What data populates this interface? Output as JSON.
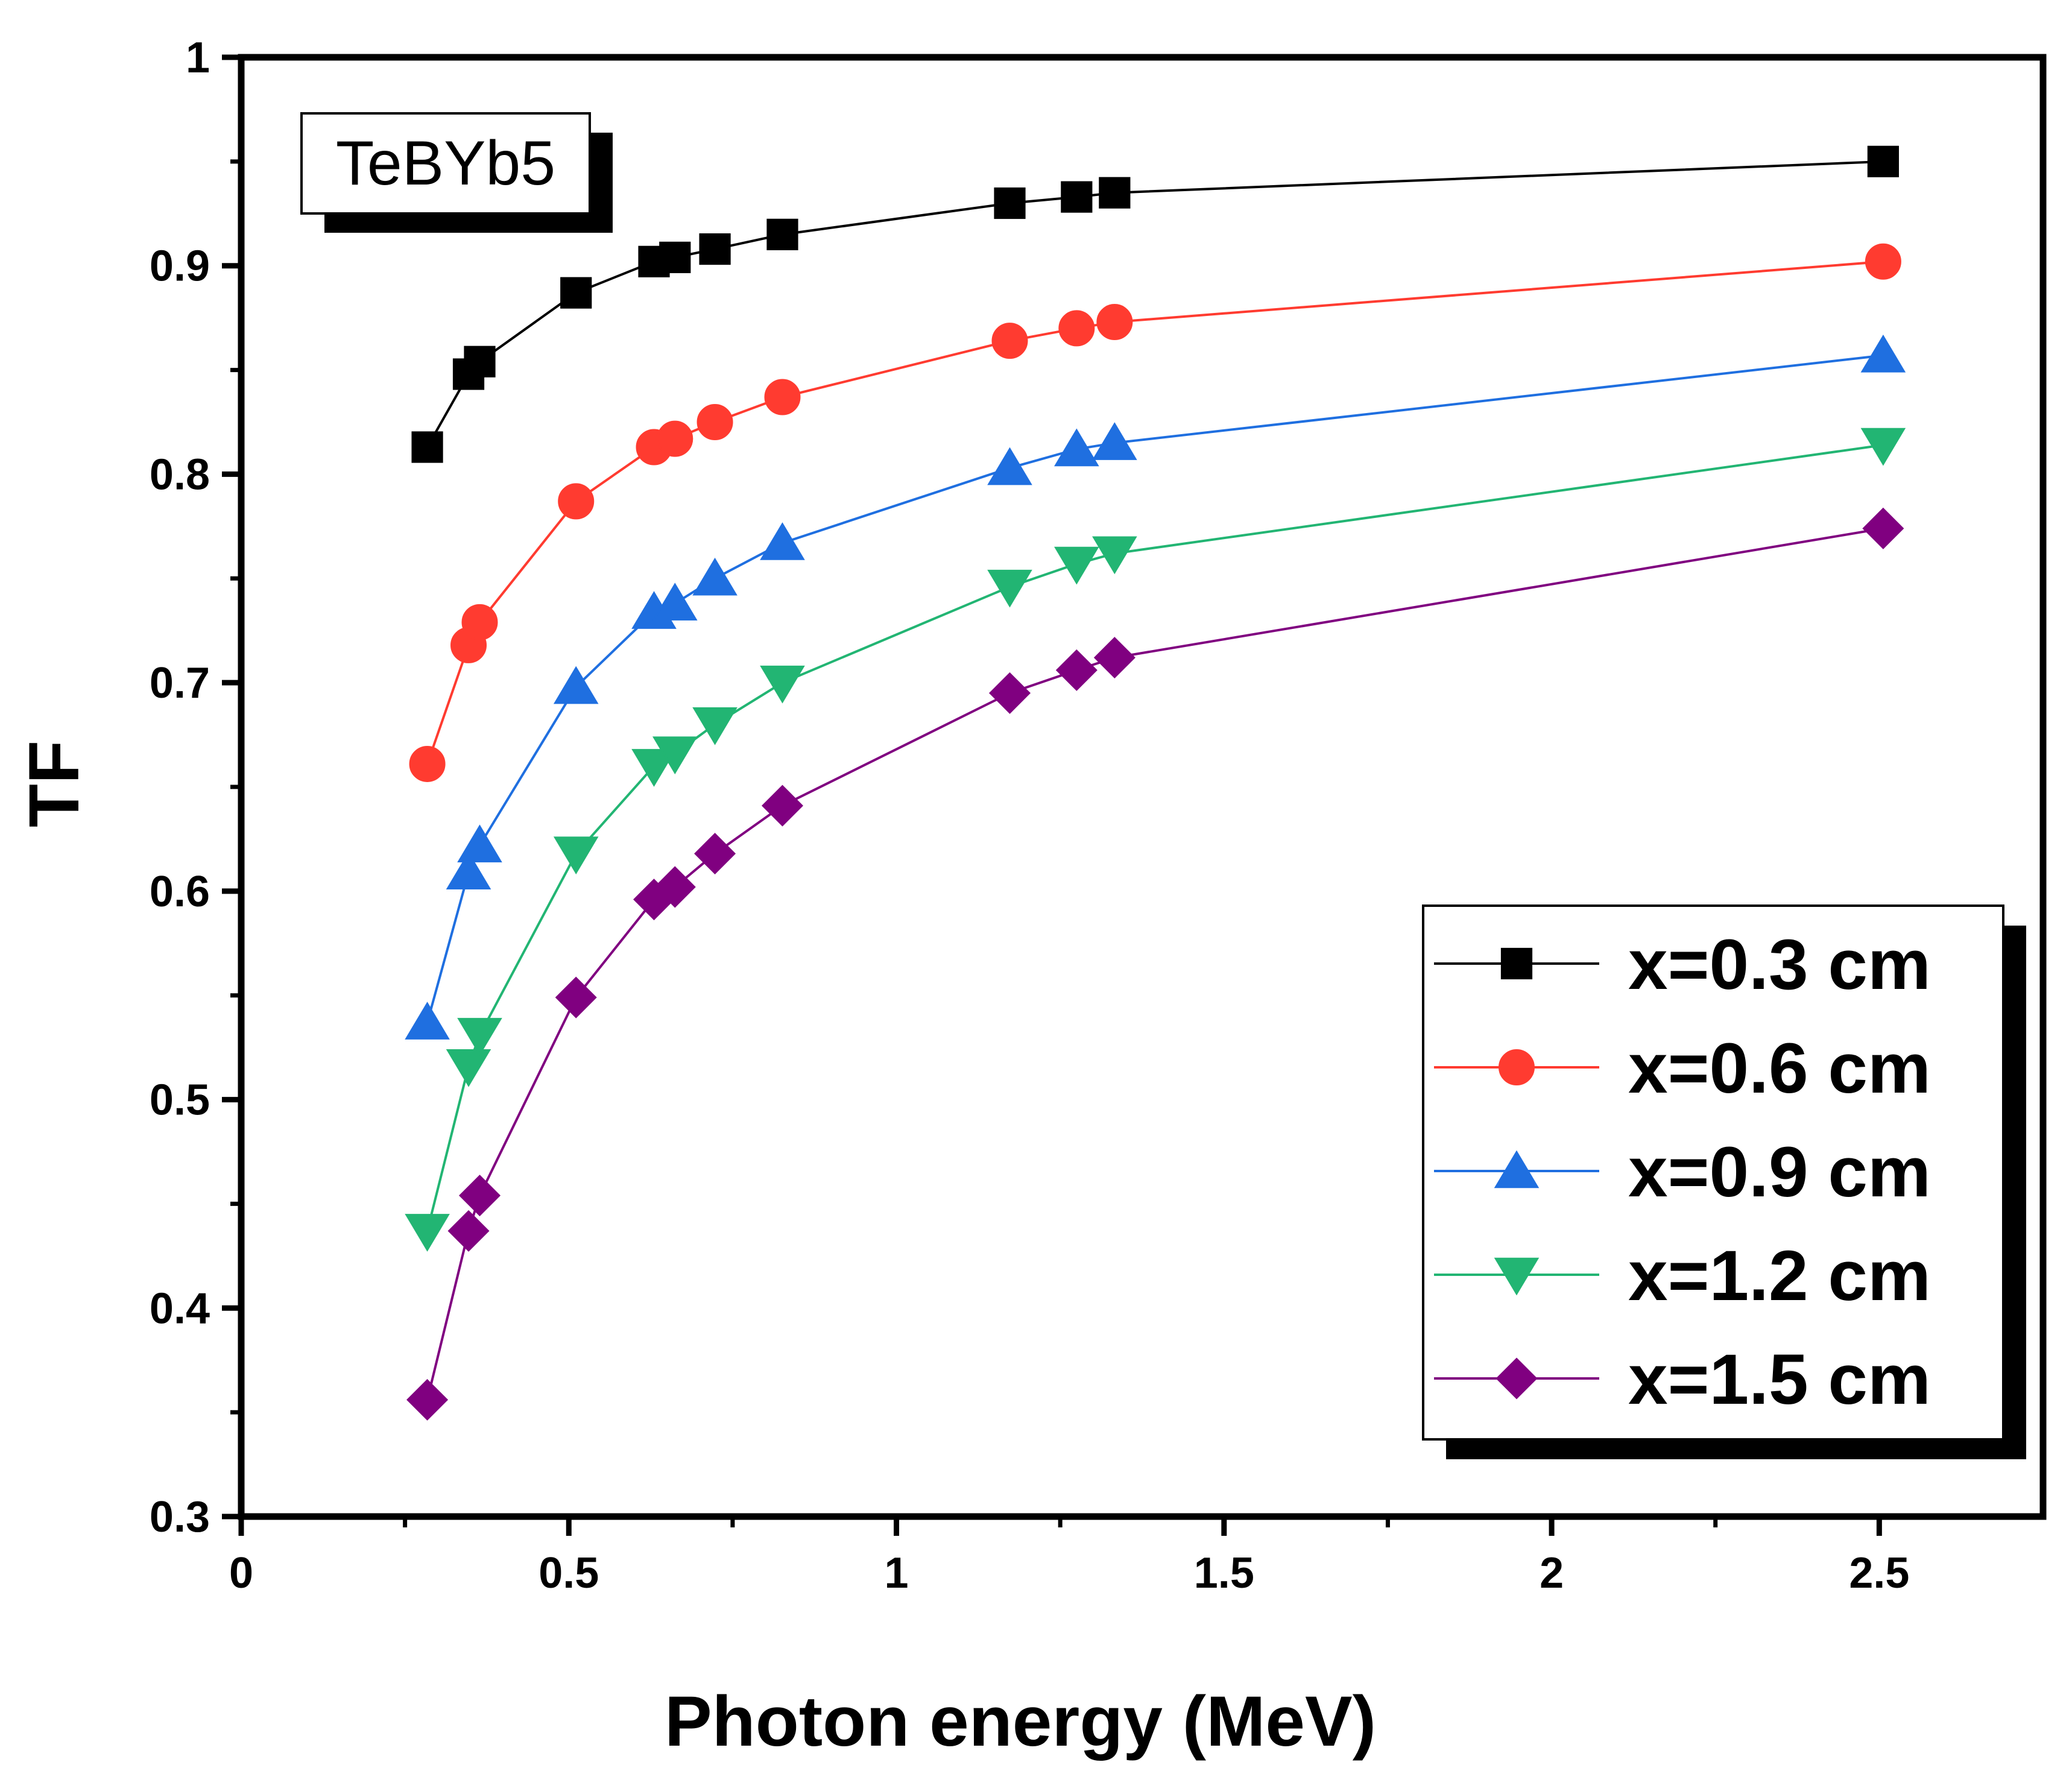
{
  "chart_data": {
    "type": "line",
    "title": "",
    "annotation": "TeBYb5",
    "xlabel": "Photon energy (MeV)",
    "ylabel": "TF",
    "xlim": [
      0,
      2.75
    ],
    "ylim": [
      0.3,
      1.0
    ],
    "xticks": [
      0,
      0.5,
      1,
      1.5,
      2,
      2.5
    ],
    "xtick_labels": [
      "0",
      "0.5",
      "1",
      "1.5",
      "2",
      "2.5"
    ],
    "yticks": [
      0.3,
      0.4,
      0.5,
      0.6,
      0.7,
      0.8,
      0.9,
      1.0
    ],
    "ytick_labels": [
      "0.3",
      "0.4",
      "0.5",
      "0.6",
      "0.7",
      "0.8",
      "0.9",
      "1"
    ],
    "grid": false,
    "legend_position": "bottom-right",
    "x": [
      0.284,
      0.347,
      0.364,
      0.511,
      0.63,
      0.662,
      0.723,
      0.826,
      1.173,
      1.275,
      1.333,
      2.506
    ],
    "series": [
      {
        "name": "x=0.3 cm",
        "color": "#000000",
        "marker": "square",
        "values": [
          0.813,
          0.848,
          0.854,
          0.887,
          0.902,
          0.904,
          0.908,
          0.915,
          0.93,
          0.933,
          0.935,
          0.95
        ]
      },
      {
        "name": "x=0.6 cm",
        "color": "#ff3b30",
        "marker": "circle",
        "values": [
          0.661,
          0.718,
          0.729,
          0.787,
          0.813,
          0.817,
          0.825,
          0.837,
          0.864,
          0.87,
          0.873,
          0.902
        ]
      },
      {
        "name": "x=0.9 cm",
        "color": "#1f6fe0",
        "marker": "triangle-up",
        "values": [
          0.537,
          0.609,
          0.622,
          0.698,
          0.734,
          0.738,
          0.75,
          0.767,
          0.803,
          0.812,
          0.815,
          0.857
        ]
      },
      {
        "name": "x=1.2 cm",
        "color": "#22b573",
        "marker": "triangle-down",
        "values": [
          0.437,
          0.516,
          0.531,
          0.618,
          0.66,
          0.666,
          0.68,
          0.7,
          0.746,
          0.757,
          0.762,
          0.814
        ]
      },
      {
        "name": "x=1.5 cm",
        "color": "#800080",
        "marker": "diamond",
        "values": [
          0.356,
          0.437,
          0.454,
          0.549,
          0.596,
          0.602,
          0.618,
          0.641,
          0.695,
          0.706,
          0.712,
          0.774
        ]
      }
    ]
  }
}
